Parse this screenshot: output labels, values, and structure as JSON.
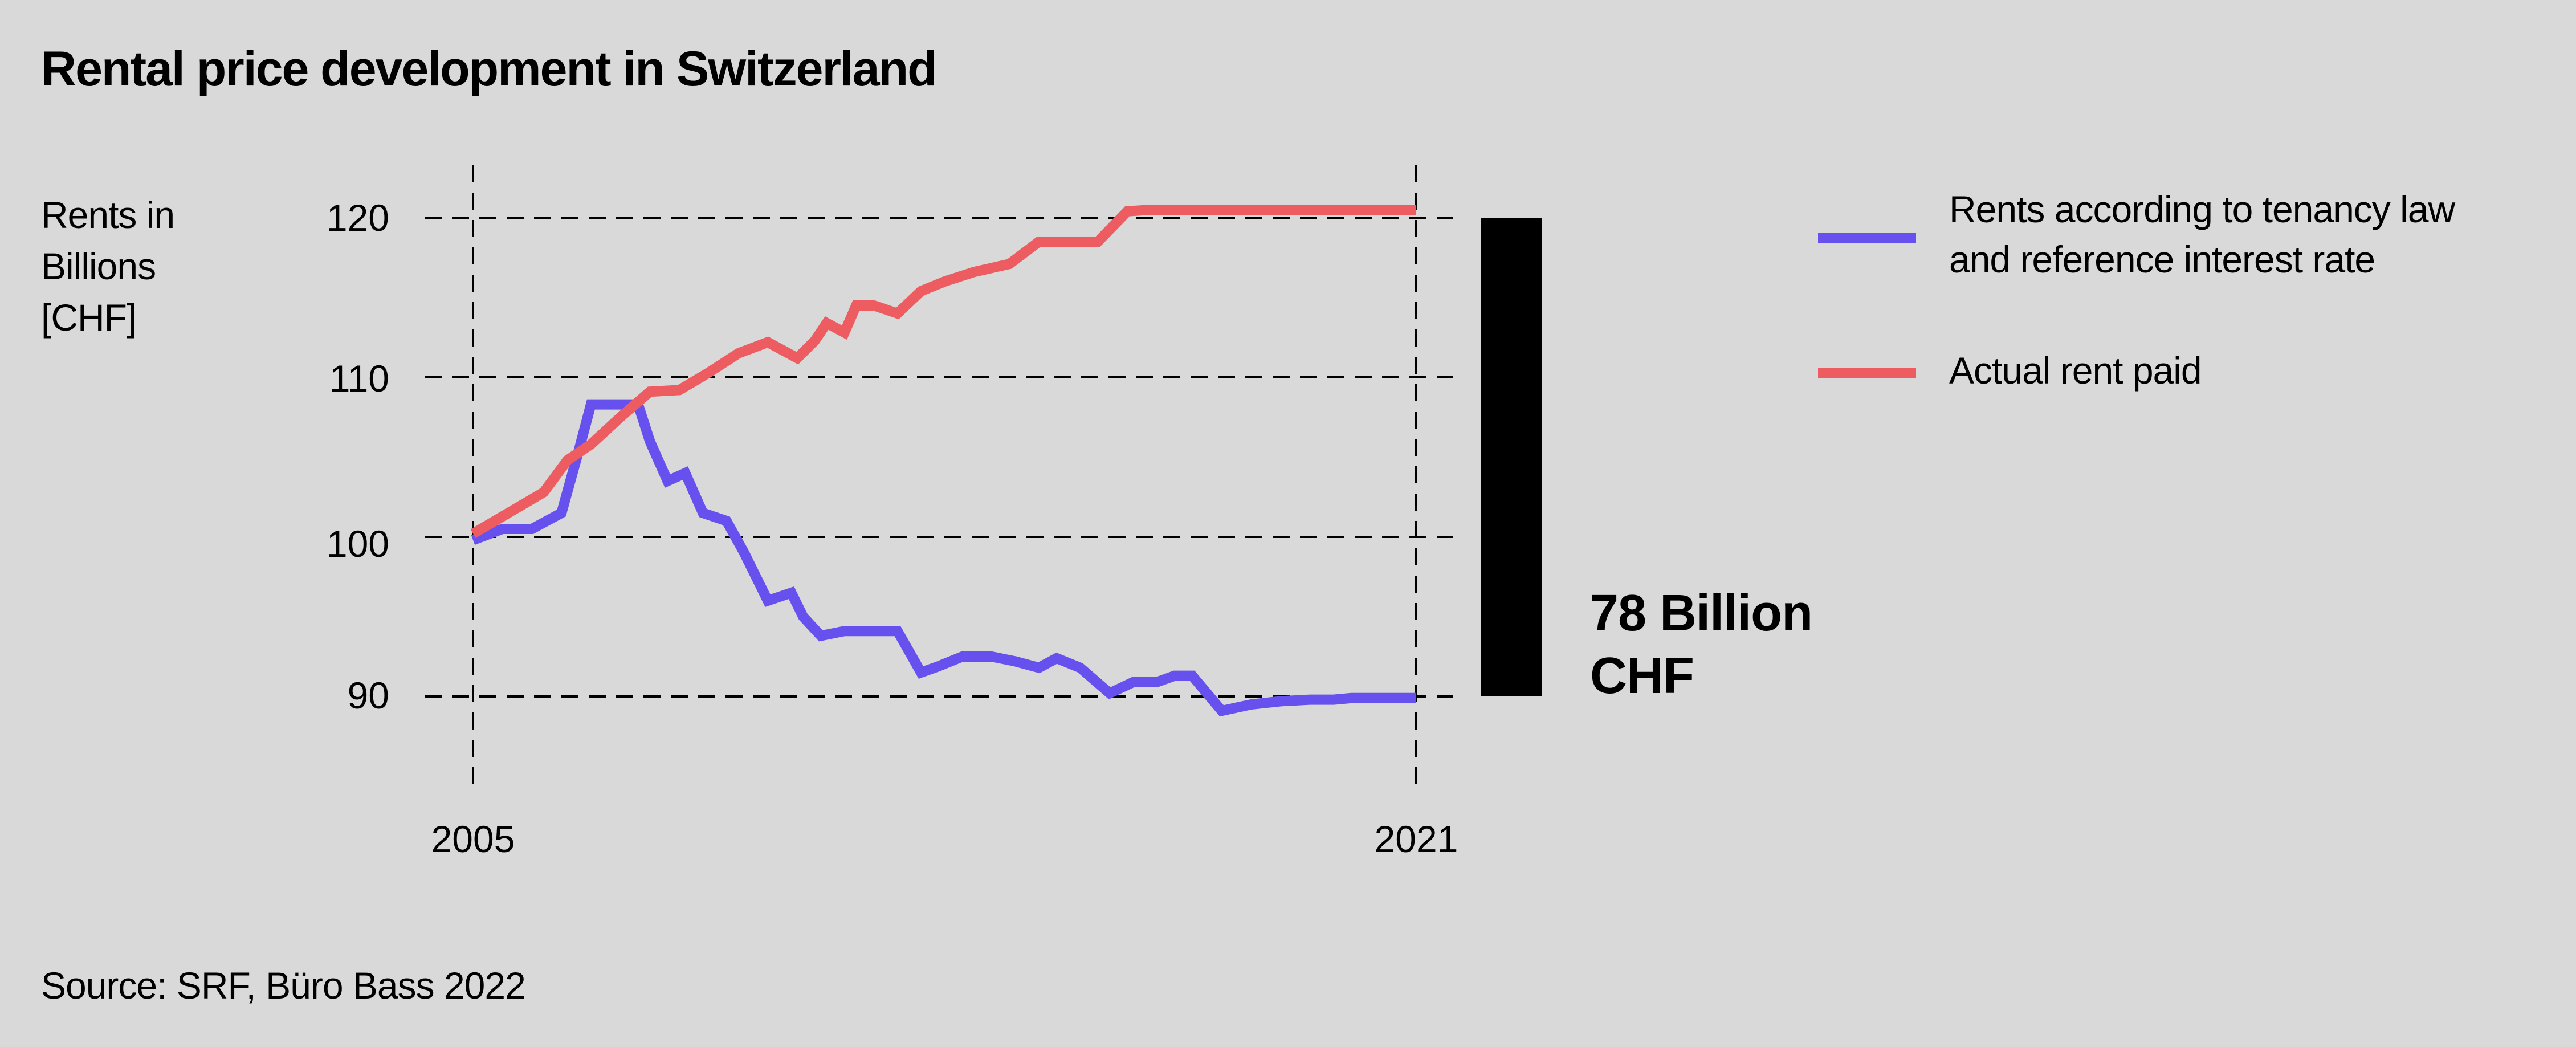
{
  "chart_data": {
    "type": "line",
    "title": "Rental price development in Switzerland",
    "ylabel": [
      "Rents in",
      "Billions",
      "[CHF]"
    ],
    "xlabel": "",
    "xlim": [
      2005,
      2021
    ],
    "ylim": [
      85,
      122
    ],
    "x_ticks": [
      "2005",
      "2021"
    ],
    "y_ticks": [
      "120",
      "110",
      "100",
      "90"
    ],
    "grid": true,
    "legend_position": "right",
    "colors": {
      "background": "#d9d9d9",
      "tenancy": "#6651ef",
      "actual": "#ec5c60",
      "bar": "#000000"
    },
    "series": [
      {
        "name": "Rents according to tenancy law and reference interest rate",
        "legend_lines": [
          "Rents according to tenancy law",
          "and reference interest rate"
        ],
        "color": "#6651ef",
        "x": [
          2005,
          2005.5,
          2006,
          2006.5,
          2006.8,
          2007,
          2007.3,
          2007.5,
          2007.8,
          2008,
          2008.3,
          2008.6,
          2008.9,
          2009.3,
          2009.6,
          2010,
          2010.4,
          2010.6,
          2010.9,
          2011.3,
          2011.5,
          2011.8,
          2012.2,
          2012.6,
          2012.9,
          2013.3,
          2013.8,
          2014.2,
          2014.6,
          2014.9,
          2015.3,
          2015.8,
          2016.2,
          2016.6,
          2016.9,
          2017.2,
          2017.7,
          2018.2,
          2018.7,
          2019.2,
          2019.6,
          2019.9,
          2020.3,
          2020.6,
          2021
        ],
        "y": [
          99.8,
          100.5,
          100.5,
          101.5,
          105.5,
          108.3,
          108.3,
          108.3,
          108.3,
          106,
          103.5,
          104,
          101.5,
          101,
          99,
          96,
          96.5,
          95,
          93.8,
          94.1,
          94.1,
          94.1,
          94.1,
          91.5,
          91.9,
          92.5,
          92.5,
          92.2,
          91.8,
          92.4,
          91.8,
          90.2,
          90.9,
          90.9,
          91.3,
          91.3,
          89.1,
          89.5,
          89.7,
          89.8,
          89.8,
          89.9,
          89.9,
          89.9,
          89.9
        ]
      },
      {
        "name": "Actual rent paid",
        "legend_lines": [
          "Actual rent paid"
        ],
        "color": "#ec5c60",
        "x": [
          2005,
          2006.2,
          2006.6,
          2007,
          2007.5,
          2008,
          2008.5,
          2009,
          2009.5,
          2010,
          2010.5,
          2010.8,
          2011,
          2011.3,
          2011.5,
          2011.8,
          2012.2,
          2012.6,
          2013,
          2013.5,
          2014.1,
          2014.6,
          2015.3,
          2015.6,
          2016.1,
          2016.5,
          2016.9,
          2017.3,
          2017.6,
          2018,
          2018.4,
          2018.8,
          2019.2,
          2019.5,
          2019.9,
          2020.2,
          2020.5,
          2021
        ],
        "y": [
          100.2,
          102.8,
          104.8,
          105.8,
          107.5,
          109.1,
          109.2,
          110.3,
          111.5,
          112.2,
          111.2,
          112.3,
          113.4,
          112.8,
          114.5,
          114.5,
          114,
          115.4,
          116,
          116.6,
          117.1,
          118.5,
          118.5,
          118.5,
          120.4,
          120.5,
          120.5,
          120.5,
          120.5,
          120.5,
          120.5,
          120.5,
          120.5,
          120.5,
          120.5,
          120.5,
          120.5,
          120.5
        ]
      }
    ],
    "annotation": {
      "lines": [
        "78 Billion",
        "CHF"
      ],
      "bar_from": 90,
      "bar_to": 120
    },
    "source": "Source: SRF, Büro Bass 2022"
  }
}
